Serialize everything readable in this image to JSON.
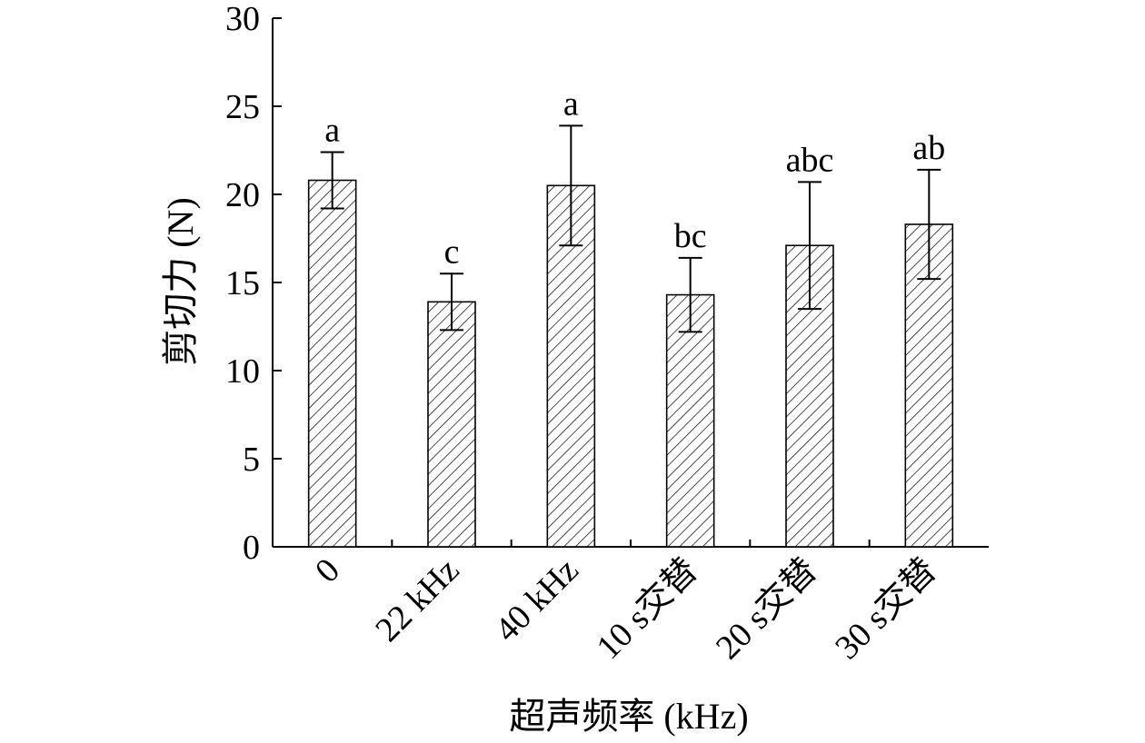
{
  "chart_data": {
    "type": "bar",
    "xlabel": "超声频率 (kHz)",
    "ylabel": "剪切力 (N)",
    "ylim": [
      0,
      30
    ],
    "yticks": [
      0,
      5,
      10,
      15,
      20,
      25,
      30
    ],
    "categories": [
      "0",
      "22 kHz",
      "40 kHz",
      "10 s交替",
      "20 s交替",
      "30 s交替"
    ],
    "values": [
      20.8,
      13.9,
      20.5,
      14.3,
      17.1,
      18.3
    ],
    "errors": [
      1.6,
      1.6,
      3.4,
      2.1,
      3.6,
      3.1
    ],
    "significance": [
      "a",
      "c",
      "a",
      "bc",
      "abc",
      "ab"
    ],
    "bar_fill": "hatched diagonal",
    "grid": false,
    "legend": "none"
  }
}
